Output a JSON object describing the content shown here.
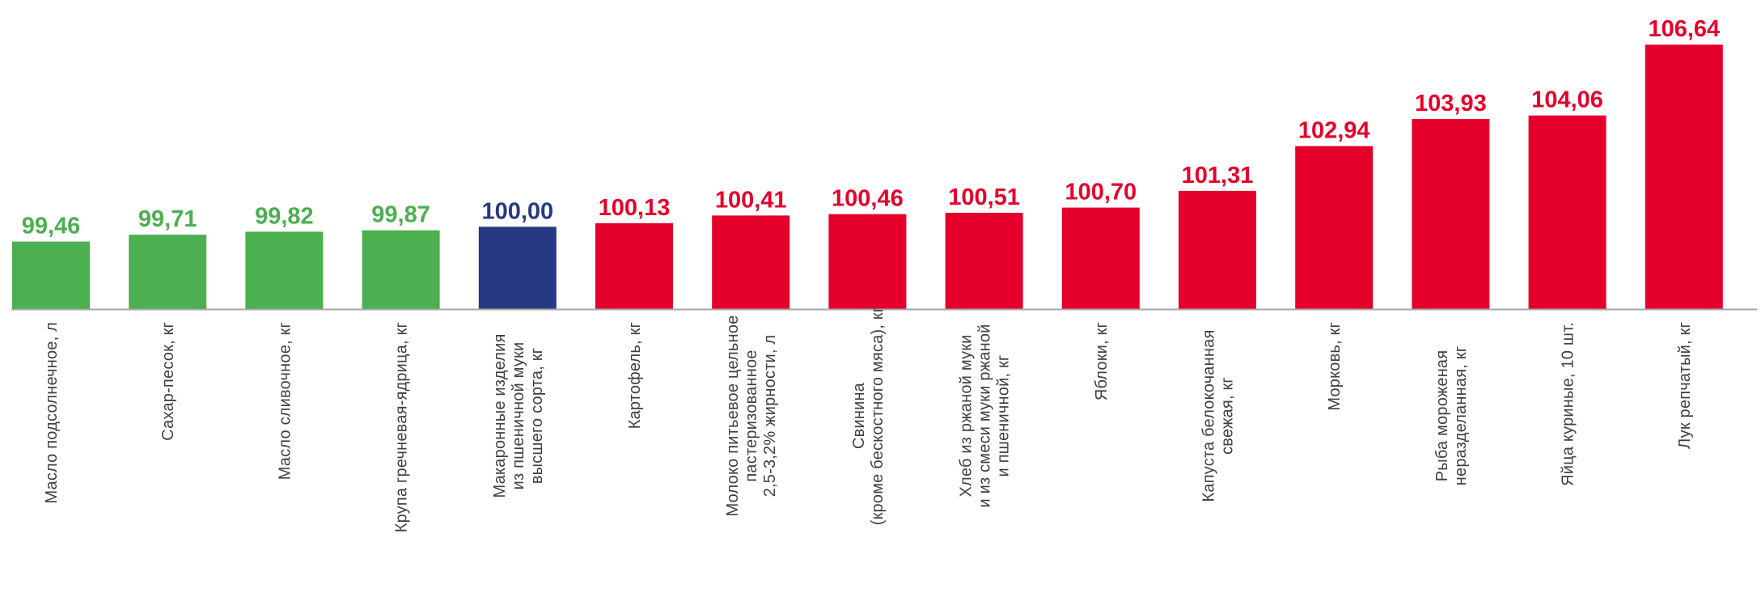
{
  "chart_data": {
    "type": "bar",
    "title": "",
    "xlabel": "",
    "ylabel": "",
    "ylim": [
      97.0,
      107.0
    ],
    "grid": false,
    "legend": "none",
    "colors": {
      "below": "#4caf50",
      "neutral": "#263a84",
      "above": "#e4002b",
      "axis": "#a6a6a6",
      "category_text": "#404040"
    },
    "bars": [
      {
        "category_lines": [
          "Масло подсолнечное, л"
        ],
        "value": 99.46,
        "value_label": "99,46",
        "status": "below"
      },
      {
        "category_lines": [
          "Сахар-песок, кг"
        ],
        "value": 99.71,
        "value_label": "99,71",
        "status": "below"
      },
      {
        "category_lines": [
          "Масло сливочное, кг"
        ],
        "value": 99.82,
        "value_label": "99,82",
        "status": "below"
      },
      {
        "category_lines": [
          "Крупа гречневая-ядрица, кг"
        ],
        "value": 99.87,
        "value_label": "99,87",
        "status": "below"
      },
      {
        "category_lines": [
          "Макаронные изделия",
          "из пшеничной муки",
          "высшего сорта, кг"
        ],
        "value": 100.0,
        "value_label": "100,00",
        "status": "neutral"
      },
      {
        "category_lines": [
          "Картофель, кг"
        ],
        "value": 100.13,
        "value_label": "100,13",
        "status": "above"
      },
      {
        "category_lines": [
          "Молоко питьевое цельное",
          "пастеризованное",
          "2,5-3,2% жирности, л"
        ],
        "value": 100.41,
        "value_label": "100,41",
        "status": "above"
      },
      {
        "category_lines": [
          "Свинина",
          "(кроме бескостного мяса), кг"
        ],
        "value": 100.46,
        "value_label": "100,46",
        "status": "above"
      },
      {
        "category_lines": [
          "Хлеб из ржаной муки",
          "и из смеси муки ржаной",
          "и пшеничной, кг"
        ],
        "value": 100.51,
        "value_label": "100,51",
        "status": "above"
      },
      {
        "category_lines": [
          "Яблоки, кг"
        ],
        "value": 100.7,
        "value_label": "100,70",
        "status": "above"
      },
      {
        "category_lines": [
          "Капуста белокочанная",
          "свежая, кг"
        ],
        "value": 101.31,
        "value_label": "101,31",
        "status": "above"
      },
      {
        "category_lines": [
          "Морковь, кг"
        ],
        "value": 102.94,
        "value_label": "102,94",
        "status": "above"
      },
      {
        "category_lines": [
          "Рыба мороженая",
          "неразделанная, кг"
        ],
        "value": 103.93,
        "value_label": "103,93",
        "status": "above"
      },
      {
        "category_lines": [
          "Яйца куриные, 10 шт."
        ],
        "value": 104.06,
        "value_label": "104,06",
        "status": "above"
      },
      {
        "category_lines": [
          "Лук репчатый, кг"
        ],
        "value": 106.64,
        "value_label": "106,64",
        "status": "above"
      }
    ]
  }
}
